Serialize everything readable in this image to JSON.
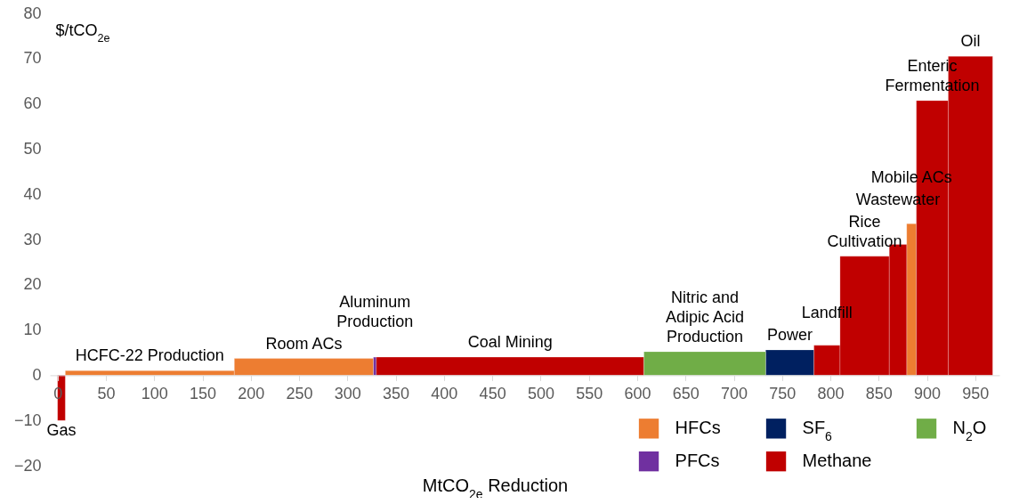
{
  "chart_data": {
    "type": "histogram",
    "bins": [
      0,
      8,
      183,
      327,
      330,
      607,
      733,
      783,
      810,
      861,
      879,
      889,
      922,
      968
    ],
    "series": [
      {
        "name": "HFCs",
        "color": "#ed7d31",
        "values": [
          null,
          1,
          3.7,
          null,
          null,
          null,
          null,
          null,
          null,
          null,
          33.5,
          null,
          null
        ]
      },
      {
        "name": "PFCs",
        "color": "#7030a0",
        "values": [
          null,
          null,
          null,
          4,
          null,
          null,
          null,
          null,
          null,
          null,
          null,
          null,
          null
        ]
      },
      {
        "name": "SF$_{6}$",
        "color": "#002060",
        "values": [
          null,
          null,
          null,
          null,
          null,
          null,
          5.6,
          null,
          null,
          null,
          null,
          null,
          null
        ]
      },
      {
        "name": "Methane",
        "color": "#c00000",
        "values": [
          -10,
          null,
          null,
          null,
          4,
          null,
          null,
          6.6,
          26.3,
          28.9,
          null,
          60.7,
          70.5
        ]
      },
      {
        "name": "N$_{2}$O",
        "color": "#70ad47",
        "values": [
          null,
          null,
          null,
          null,
          null,
          5.2,
          null,
          null,
          null,
          null,
          null,
          null,
          null
        ]
      }
    ],
    "xlabel": "MtCO$_{2e}$  Reduction",
    "ylabel": "$/tCO$_{2e}$",
    "xlim": [
      -8,
      975
    ],
    "xticks": [
      0,
      50,
      100,
      150,
      200,
      250,
      300,
      350,
      400,
      450,
      500,
      550,
      600,
      650,
      700,
      750,
      800,
      850,
      900,
      950
    ],
    "ylim": [
      -20,
      80
    ],
    "yticks": [
      -20,
      -10,
      0,
      10,
      20,
      30,
      40,
      50,
      60,
      70,
      80
    ],
    "legend": "bottom right",
    "annotations": [
      {
        "text": "Gas",
        "x": 4,
        "y": -10
      },
      {
        "text": "HCFC-22 Production",
        "x": 95.5,
        "y": 1
      },
      {
        "text": "Room ACs",
        "x": 255,
        "y": 3.7
      },
      {
        "text": "Aluminum\nProduction",
        "x": 328.5,
        "y": 4
      },
      {
        "text": "Coal Mining",
        "x": 468.5,
        "y": 4
      },
      {
        "text": "Nitric and\nAdipic Acid\nProduction",
        "x": 670,
        "y": 5.2
      },
      {
        "text": "Power",
        "x": 758,
        "y": 5.6
      },
      {
        "text": "Landfill",
        "x": 796.5,
        "y": 6.6
      },
      {
        "text": "Rice\nCultivation",
        "x": 835.5,
        "y": 26.3
      },
      {
        "text": "Wastewater",
        "x": 870,
        "y": 28.9
      },
      {
        "text": "Mobile ACs",
        "x": 884,
        "y": 33.5
      },
      {
        "text": "Enteric\nFermentation",
        "x": 905.5,
        "y": 60.7
      },
      {
        "text": "Oil",
        "x": 945,
        "y": 70.5
      }
    ]
  }
}
